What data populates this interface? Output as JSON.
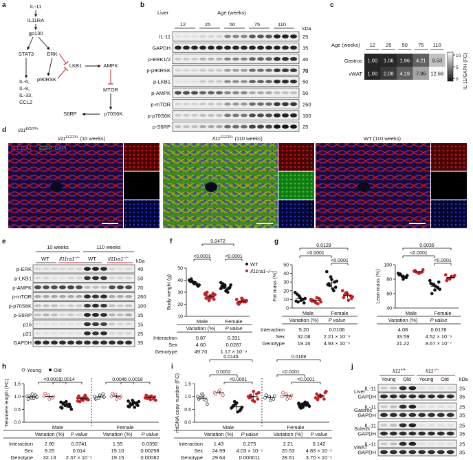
{
  "colors": {
    "wt": "#111111",
    "ko": "#c0262b",
    "young": "#ffffff",
    "old": "#111111",
    "red_cross": "#c0262b",
    "slc": "#d11818",
    "egfp": "#2aa52a",
    "dapi": "#2232d8"
  },
  "panel_a": {
    "letter": "a",
    "nodes": [
      "IL-11",
      "IL11RA",
      "gp130",
      "STAT3",
      "ERK",
      "LKB1",
      "AMPK",
      "IL-6,",
      "IL-8,",
      "IL-33,",
      "CCL2",
      "p90RSK",
      "MTOR",
      "S6RP",
      "p70S6K"
    ]
  },
  "panel_b": {
    "letter": "b",
    "title": "Liver",
    "axis_label": "Age (weeks)",
    "ages": [
      "12",
      "25",
      "50",
      "75",
      "110"
    ],
    "kda_label": "kDa",
    "rows": [
      {
        "name": "IL-11",
        "kda": "25",
        "profile": [
          0.05,
          0.1,
          0.45,
          0.65,
          0.9
        ]
      },
      {
        "name": "GAPDH",
        "kda": "35",
        "profile": [
          0.9,
          0.9,
          0.9,
          0.9,
          0.9
        ]
      },
      {
        "name": "p-ERK1/2",
        "kda": "40",
        "profile": [
          0.15,
          0.25,
          0.45,
          0.6,
          0.85
        ]
      },
      {
        "name": "p-p90RSK",
        "kda": "70",
        "profile": [
          0.1,
          0.15,
          0.35,
          0.55,
          0.8
        ]
      },
      {
        "name": "p-LKB1",
        "kda": "50",
        "profile": [
          0.05,
          0.15,
          0.4,
          0.6,
          0.85
        ]
      },
      {
        "name": "p-AMPK",
        "kda": "50",
        "profile": [
          0.7,
          0.6,
          0.45,
          0.3,
          0.2
        ]
      },
      {
        "name": "p-mTOR",
        "kda": "260",
        "profile": [
          0.1,
          0.15,
          0.35,
          0.55,
          0.8
        ]
      },
      {
        "name": "p-p70S6K",
        "kda": "100",
        "profile": [
          0.15,
          0.2,
          0.5,
          0.7,
          0.9
        ]
      },
      {
        "name": "p-S6RP",
        "kda": "25",
        "profile": [
          0.2,
          0.3,
          0.55,
          0.75,
          0.95
        ]
      }
    ],
    "kda_extra": [
      "70"
    ]
  },
  "panel_c": {
    "letter": "c",
    "axis_label": "Age (weeks)",
    "ages": [
      "12",
      "25",
      "50",
      "75",
      "110"
    ],
    "rows": [
      {
        "name": "Gastroc",
        "values": [
          "1.00",
          "1.06",
          "1.96",
          "4.21",
          "9.53"
        ],
        "nums": [
          1.0,
          1.06,
          1.96,
          4.21,
          9.53
        ]
      },
      {
        "name": "vWAT",
        "values": [
          "1.00",
          "2.08",
          "4.19",
          "7.96",
          "12.68"
        ],
        "nums": [
          1.0,
          2.08,
          4.19,
          7.96,
          12.68
        ]
      }
    ],
    "colorbar_ticks": [
      "10",
      "5",
      "0"
    ],
    "colorbar_label": "IL-11/GAPH (FC)"
  },
  "panel_d": {
    "letter": "d",
    "panel_label_main": "Il11",
    "panel_label_sup": "EGFP/+",
    "images": [
      {
        "title_main": "Il11",
        "title_sup": "EGFP/+",
        "title_suffix": " (10 weeks)"
      },
      {
        "title_main": "Il11",
        "title_sup": "EGFP/+",
        "title_suffix": " (110 weeks)"
      },
      {
        "title_main": "",
        "title_sup": "",
        "title_suffix": "WT (110 weeks)"
      }
    ],
    "legend": [
      "SLC10A1",
      "EGFP",
      "DAPI"
    ]
  },
  "panel_e": {
    "letter": "e",
    "groups": [
      "10 weeks",
      "110 weeks"
    ],
    "genotypes": [
      "WT",
      "Il11ra1",
      "WT",
      "Il11ra1"
    ],
    "ko_sup": "−/−",
    "kda_label": "kDa",
    "rows": [
      {
        "name": "p-ERK",
        "kda": "40"
      },
      {
        "name": "p-LKB1",
        "kda": "50"
      },
      {
        "name": "p-AMPK",
        "kda": "70"
      },
      {
        "name": "p-mTOR",
        "kda": "260"
      },
      {
        "name": "p-p70S6K",
        "kda": "100"
      },
      {
        "name": "p-S6RP",
        "kda": "35"
      },
      {
        "name": "p16",
        "kda": "15"
      },
      {
        "name": "p21",
        "kda": "25"
      },
      {
        "name": "GAPDH",
        "kda": "35"
      }
    ]
  },
  "chart_data": [
    {
      "panel": "f",
      "type": "scatter",
      "ylabel": "Body weight (g)",
      "ylim": [
        10,
        50
      ],
      "yticks": [
        10,
        20,
        30,
        40,
        50
      ],
      "groups": [
        "Male",
        "Female"
      ],
      "legend": [
        "WT",
        "Il11ra1−/−"
      ],
      "series": [
        {
          "name": "WT",
          "x": "Male",
          "values": [
            40,
            38,
            36,
            39,
            37,
            35,
            41,
            38,
            36,
            39
          ]
        },
        {
          "name": "Il11ra1−/−",
          "x": "Male",
          "values": [
            28,
            26,
            29,
            25,
            27,
            24,
            30,
            26,
            28,
            25,
            27,
            29,
            23,
            26,
            28,
            25
          ]
        },
        {
          "name": "WT",
          "x": "Female",
          "values": [
            38,
            36,
            33,
            35,
            31,
            34,
            37,
            32,
            36,
            34,
            30,
            33,
            35
          ]
        },
        {
          "name": "Il11ra1−/−",
          "x": "Female",
          "values": [
            24,
            22,
            23,
            21,
            25,
            22,
            20,
            24,
            23,
            21,
            22
          ]
        }
      ],
      "brackets": [
        {
          "label": "<0.0001",
          "level": 1
        },
        {
          "label": "<0.0001",
          "level": 1
        },
        {
          "label": "0.0472",
          "level": 2
        }
      ],
      "stats": {
        "headers": [
          "Variation (%)",
          "P value"
        ],
        "rows": [
          [
            "Interaction",
            "0.87",
            "0.331"
          ],
          [
            "Sex",
            "4.60",
            "0.0287"
          ],
          [
            "Genotype",
            "49.70",
            "1.17 × 10⁻⁹"
          ]
        ]
      }
    },
    {
      "panel": "g1",
      "type": "scatter",
      "ylabel": "Fat mass (%)",
      "ylim": [
        0,
        50
      ],
      "yticks": [
        0,
        10,
        20,
        30,
        40,
        50
      ],
      "groups": [
        "Male",
        "Female"
      ],
      "series": [
        {
          "name": "WT",
          "x": "Male",
          "values": [
            18,
            14,
            10,
            8,
            12,
            6,
            16,
            9,
            11,
            7
          ]
        },
        {
          "name": "Il11ra1−/−",
          "x": "Male",
          "values": [
            9,
            7,
            11,
            8,
            6,
            10,
            9,
            12,
            7,
            8,
            5,
            10
          ]
        },
        {
          "name": "WT",
          "x": "Female",
          "values": [
            42,
            36,
            30,
            27,
            33,
            24,
            28,
            22,
            31,
            26,
            20
          ]
        },
        {
          "name": "Il11ra1−/−",
          "x": "Female",
          "values": [
            20,
            18,
            14,
            12,
            16,
            11,
            15,
            9,
            13,
            17
          ]
        }
      ],
      "brackets": [
        {
          "label": "<0.0001",
          "level": 1
        },
        {
          "label": "<0.0001",
          "level": 0
        },
        {
          "label": "0.0129",
          "level": 2
        }
      ],
      "stats": {
        "headers": [
          "Variation (%)",
          "P value"
        ],
        "rows": [
          [
            "Interaction",
            "5.20",
            "0.0106"
          ],
          [
            "Sex",
            "32.08",
            "2.21 × 10⁻⁹"
          ],
          [
            "Genotype",
            "19.16",
            "4.93 × 10⁻⁶"
          ]
        ]
      }
    },
    {
      "panel": "g2",
      "type": "scatter",
      "ylabel": "Lean mass (%)",
      "ylim": [
        40,
        100
      ],
      "yticks": [
        40,
        60,
        80,
        100
      ],
      "groups": [
        "Male",
        "Female"
      ],
      "series": [
        {
          "name": "WT",
          "x": "Male",
          "values": [
            88,
            84,
            82,
            86,
            80,
            85,
            87,
            83
          ]
        },
        {
          "name": "Il11ra1−/−",
          "x": "Male",
          "values": [
            91,
            89,
            90,
            92,
            88,
            93,
            90,
            89
          ]
        },
        {
          "name": "WT",
          "x": "Female",
          "values": [
            78,
            72,
            68,
            74,
            65,
            76,
            60,
            70,
            66,
            73
          ]
        },
        {
          "name": "Il11ra1−/−",
          "x": "Female",
          "values": [
            86,
            80,
            83,
            78,
            82,
            85,
            81,
            84
          ]
        }
      ],
      "brackets": [
        {
          "label": "<0.0001",
          "level": 1
        },
        {
          "label": "<0.0001",
          "level": 0
        },
        {
          "label": "0.0035",
          "level": 2
        }
      ],
      "stats": {
        "headers": [
          "Variation (%)",
          "P value"
        ],
        "rows": [
          [
            "Interaction",
            "4.08",
            "0.0178"
          ],
          [
            "Sex",
            "33.59",
            "4.52 × 10⁻⁹"
          ],
          [
            "Genotype",
            "21.22",
            "8.67 × 10⁻⁷"
          ]
        ]
      }
    },
    {
      "panel": "h",
      "type": "scatter",
      "ylabel": "Telomere length (FC)",
      "ylim": [
        0,
        1.5
      ],
      "yticks": [
        0,
        0.5,
        1.0,
        1.5
      ],
      "groups": [
        "Male",
        "Female"
      ],
      "legend": [
        "Young",
        "Old"
      ],
      "series": [
        {
          "name": "Young WT",
          "x": "Male",
          "values": [
            1.0,
            0.95,
            1.05,
            0.9,
            1.1,
            0.98,
            1.02,
            0.92
          ]
        },
        {
          "name": "Young KO",
          "x": "Male",
          "values": [
            1.0,
            1.05,
            0.95,
            1.12,
            0.9,
            1.0
          ]
        },
        {
          "name": "Old WT",
          "x": "Male",
          "values": [
            0.78,
            0.65,
            0.7,
            0.55,
            0.8,
            0.6,
            0.72,
            0.68,
            0.5,
            0.75,
            0.62,
            0.58
          ]
        },
        {
          "name": "Old KO",
          "x": "Male",
          "values": [
            0.95,
            0.88,
            0.9,
            1.02,
            0.85,
            0.92,
            0.8,
            0.98,
            0.87,
            0.93,
            1.05,
            0.82,
            0.9,
            0.96
          ]
        },
        {
          "name": "Young WT",
          "x": "Female",
          "values": [
            1.0,
            0.95,
            1.1,
            0.9,
            1.05,
            0.98,
            0.92
          ]
        },
        {
          "name": "Young KO",
          "x": "Female",
          "values": [
            1.0,
            1.08,
            0.95,
            1.12,
            0.9,
            1.02
          ]
        },
        {
          "name": "Old WT",
          "x": "Female",
          "values": [
            0.82,
            0.7,
            0.75,
            0.6,
            0.78,
            0.65,
            0.72,
            0.58,
            0.8,
            0.68,
            0.74,
            0.62,
            0.85,
            0.7
          ]
        },
        {
          "name": "Old KO",
          "x": "Female",
          "values": [
            0.95,
            1.0,
            0.9,
            1.05,
            0.88,
            0.98,
            0.92,
            1.02,
            0.85,
            0.96
          ]
        }
      ],
      "brackets": [
        {
          "label": "<0.0001",
          "level": 1
        },
        {
          "label": "0.0014",
          "level": 1
        },
        {
          "label": "0.0046",
          "level": 1
        },
        {
          "label": "0.0018",
          "level": 1
        }
      ],
      "stats": {
        "headers": [
          "Variation (%)",
          "P value",
          "Variation (%)",
          "P value"
        ],
        "rows": [
          [
            "Interaction",
            "2.80",
            "0.0741",
            "1.55",
            "0.0392"
          ],
          [
            "Sex",
            "9.25",
            "0.014",
            "15.10",
            "0.00258"
          ],
          [
            "Genotype",
            "32.13",
            "2.37 × 10⁻⁵",
            "19.15",
            "0.00082"
          ]
        ]
      }
    },
    {
      "panel": "i",
      "type": "scatter",
      "ylabel": "mtDNA copy number (FC)",
      "ylim": [
        0,
        1.5
      ],
      "yticks": [
        0,
        0.5,
        1.0,
        1.5
      ],
      "groups": [
        "Male",
        "Female"
      ],
      "series": [
        {
          "name": "Young WT",
          "x": "Male",
          "values": [
            1.0,
            1.1,
            0.85,
            0.9,
            1.05,
            0.7,
            0.95
          ]
        },
        {
          "name": "Young KO",
          "x": "Male",
          "values": [
            1.15,
            1.2,
            1.05,
            1.1,
            1.25
          ]
        },
        {
          "name": "Old WT",
          "x": "Male",
          "values": [
            0.55,
            0.7,
            0.45,
            0.6,
            0.75,
            0.5,
            0.65,
            0.4,
            0.58,
            0.8
          ]
        },
        {
          "name": "Old KO",
          "x": "Male",
          "values": [
            1.0,
            0.85,
            1.1,
            0.95,
            1.2,
            0.9,
            1.05,
            0.8,
            1.15,
            0.98
          ]
        },
        {
          "name": "Young WT",
          "x": "Female",
          "values": [
            0.95,
            1.0,
            0.9,
            1.05,
            0.85,
            1.02
          ]
        },
        {
          "name": "Young KO",
          "x": "Female",
          "values": [
            1.0,
            1.1,
            0.95,
            1.15,
            0.9,
            1.05
          ]
        },
        {
          "name": "Old WT",
          "x": "Female",
          "values": [
            0.7,
            0.65,
            0.75,
            0.6,
            0.72,
            0.68,
            0.55,
            0.78,
            0.62,
            0.7,
            0.66,
            0.74,
            0.58,
            0.71,
            0.64
          ]
        },
        {
          "name": "Old KO",
          "x": "Female",
          "values": [
            0.95,
            1.05,
            0.9,
            1.1,
            1.0,
            1.15,
            0.88,
            1.02,
            1.2,
            0.98
          ]
        }
      ],
      "brackets": [
        {
          "label": "0.0002",
          "level": 1
        },
        {
          "label": "<0.0001",
          "level": 1
        },
        {
          "label": "0.0146",
          "level": 2
        },
        {
          "label": "<0.0001",
          "level": 1
        },
        {
          "label": "<0.0001",
          "level": 1
        },
        {
          "label": "0.0169",
          "level": 2
        }
      ],
      "stats": {
        "headers": [
          "Variation (%)",
          "P value",
          "Variation (%)",
          "P value"
        ],
        "rows": [
          [
            "Interaction",
            "1.43",
            "0.275",
            "2.21",
            "0.142"
          ],
          [
            "Sex",
            "24.99",
            "4.03 × 10⁻⁵",
            "20.53",
            "4.83 × 10⁻⁵"
          ],
          [
            "Genotype",
            "29.64",
            "0.000011",
            "28.51",
            "3.70 × 10⁻⁵"
          ]
        ]
      }
    }
  ],
  "panel_f": {
    "letter": "f"
  },
  "panel_g": {
    "letter": "g"
  },
  "panel_h": {
    "letter": "h"
  },
  "panel_i": {
    "letter": "i"
  },
  "panel_j": {
    "letter": "j",
    "genotypes": [
      {
        "main": "Il11",
        "sup": "+/+"
      },
      {
        "main": "Il11",
        "sup": "−/−"
      }
    ],
    "ages": [
      "Young",
      "Old",
      "Young",
      "Old"
    ],
    "kda_label": "kDa",
    "tissues": [
      {
        "name": "Liver",
        "rows": [
          {
            "name": "IL-11",
            "kda": "25"
          },
          {
            "name": "GAPDH",
            "kda": "35"
          }
        ]
      },
      {
        "name": "Gastroc",
        "rows": [
          {
            "name": "IL-11",
            "kda": "25"
          },
          {
            "name": "GAPDH",
            "kda": "35"
          }
        ]
      },
      {
        "name": "Soleus",
        "rows": [
          {
            "name": "IL-11",
            "kda": "25"
          },
          {
            "name": "GAPDH",
            "kda": "35"
          }
        ]
      },
      {
        "name": "vWAT",
        "rows": [
          {
            "name": "IL-11",
            "kda": "25"
          },
          {
            "name": "GAPDH",
            "kda": "35"
          }
        ]
      }
    ]
  },
  "labels": {
    "male": "Male",
    "female": "Female"
  }
}
